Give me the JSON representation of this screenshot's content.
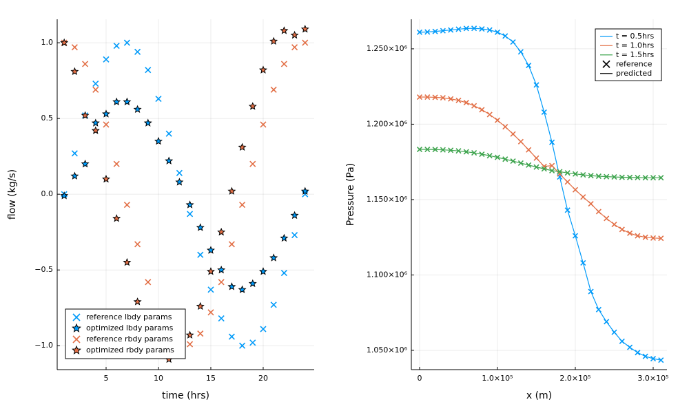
{
  "chart_data": [
    {
      "type": "scatter",
      "xlabel": "time (hrs)",
      "ylabel": "flow (kg/s)",
      "x": [
        1,
        2,
        3,
        4,
        5,
        6,
        7,
        8,
        9,
        10,
        11,
        12,
        13,
        14,
        15,
        16,
        17,
        18,
        19,
        20,
        21,
        22,
        23,
        24
      ],
      "xlim": [
        0.33,
        24.87
      ],
      "xticks": [
        5,
        10,
        15,
        20
      ],
      "ylim": [
        -1.158,
        1.155
      ],
      "yticks": [
        {
          "value": -1.0,
          "label": "−1.0"
        },
        {
          "value": -0.5,
          "label": "−0.5"
        },
        {
          "value": 0,
          "label": "0.0"
        },
        0.5,
        {
          "value": 1.0,
          "label": "1.0"
        }
      ],
      "grid": true,
      "legend": "lower left",
      "series": [
        {
          "name": "reference lbdy params",
          "color": "#009af9",
          "marker": "x",
          "values": [
            0.0,
            0.27,
            0.52,
            0.73,
            0.89,
            0.98,
            1.0,
            0.94,
            0.82,
            0.63,
            0.4,
            0.14,
            -0.13,
            -0.4,
            -0.63,
            -0.82,
            -0.94,
            -1.0,
            -0.98,
            -0.89,
            -0.73,
            -0.52,
            -0.27,
            0.0
          ]
        },
        {
          "name": "optimized lbdy params",
          "color": "#009af9",
          "marker": "star",
          "values": [
            -0.01,
            0.12,
            0.2,
            0.47,
            0.53,
            0.61,
            0.61,
            0.56,
            0.47,
            0.35,
            0.22,
            0.08,
            -0.07,
            -0.22,
            -0.37,
            -0.5,
            -0.61,
            -0.63,
            -0.59,
            -0.51,
            -0.42,
            -0.29,
            -0.14,
            0.02
          ]
        },
        {
          "name": "reference rbdy params",
          "color": "#e26f46",
          "marker": "x",
          "values": [
            1.0,
            0.97,
            0.86,
            0.69,
            0.46,
            0.2,
            -0.07,
            -0.33,
            -0.58,
            -0.78,
            -0.92,
            -0.99,
            -0.99,
            -0.92,
            -0.78,
            -0.58,
            -0.33,
            -0.07,
            0.2,
            0.46,
            0.69,
            0.86,
            0.97,
            1.0
          ]
        },
        {
          "name": "optimized rbdy params",
          "color": "#e26f46",
          "marker": "star",
          "values": [
            1.0,
            0.81,
            0.52,
            0.42,
            0.1,
            -0.16,
            -0.45,
            -0.71,
            -0.9,
            -1.02,
            -1.09,
            -1.05,
            -0.93,
            -0.74,
            -0.51,
            -0.25,
            0.02,
            0.31,
            0.58,
            0.82,
            1.01,
            1.08,
            1.05,
            1.09
          ]
        }
      ]
    },
    {
      "type": "line",
      "xlabel": "x (m)",
      "ylabel": "Pressure (Pa)",
      "x": [
        0,
        10000,
        20000,
        30000,
        40000,
        50000,
        60000,
        70000,
        80000,
        90000,
        100000,
        110000,
        120000,
        130000,
        140000,
        150000,
        160000,
        170000,
        180000,
        190000,
        200000,
        210000,
        220000,
        230000,
        240000,
        250000,
        260000,
        270000,
        280000,
        290000,
        300000,
        310000
      ],
      "xlim": [
        -10600,
        317700
      ],
      "xticks": [
        0,
        {
          "value": 100000,
          "label": "1.0×10⁵"
        },
        {
          "value": 200000,
          "label": "2.0×10⁵"
        },
        {
          "value": 300000,
          "label": "3.0×10⁵"
        }
      ],
      "ylim": [
        1037200,
        1269600
      ],
      "yticks": [
        {
          "value": 1050000,
          "label": "1.050×10⁶"
        },
        {
          "value": 1100000,
          "label": "1.100×10⁶"
        },
        {
          "value": 1150000,
          "label": "1.150×10⁶"
        },
        {
          "value": 1200000,
          "label": "1.200×10⁶"
        },
        {
          "value": 1250000,
          "label": "1.250×10⁶"
        }
      ],
      "grid": true,
      "legend": "upper right",
      "reference_label": "reference",
      "predicted_label": "predicted",
      "series": [
        {
          "name": "t = 0.5hrs",
          "color": "#009af9",
          "values": [
            1261000,
            1261200,
            1261500,
            1262000,
            1262500,
            1263000,
            1263500,
            1263600,
            1263200,
            1262500,
            1261000,
            1258500,
            1254500,
            1248000,
            1239000,
            1226000,
            1208000,
            1188000,
            1165000,
            1143000,
            1126000,
            1108000,
            1089000,
            1077000,
            1069000,
            1062000,
            1056000,
            1052000,
            1048500,
            1046000,
            1044500,
            1043500
          ]
        },
        {
          "name": "t = 1.0hrs",
          "color": "#e26f46",
          "values": [
            1218000,
            1218000,
            1217800,
            1217500,
            1216800,
            1215800,
            1214300,
            1212200,
            1209600,
            1206400,
            1202600,
            1198300,
            1193500,
            1188400,
            1183000,
            1177500,
            1172000,
            1172500,
            1167000,
            1161700,
            1156500,
            1151700,
            1147200,
            1142000,
            1137500,
            1133500,
            1130200,
            1127700,
            1126000,
            1125000,
            1124500,
            1124300
          ]
        },
        {
          "name": "t = 1.5hrs",
          "color": "#3ea44e",
          "values": [
            1183300,
            1183300,
            1183200,
            1183000,
            1182700,
            1182300,
            1181700,
            1181000,
            1180100,
            1179100,
            1178000,
            1176800,
            1175500,
            1174200,
            1172900,
            1171600,
            1170400,
            1169200,
            1168500,
            1167700,
            1167000,
            1166400,
            1165900,
            1165500,
            1165200,
            1165000,
            1164800,
            1164700,
            1164600,
            1164500,
            1164500,
            1164500
          ]
        }
      ]
    }
  ]
}
